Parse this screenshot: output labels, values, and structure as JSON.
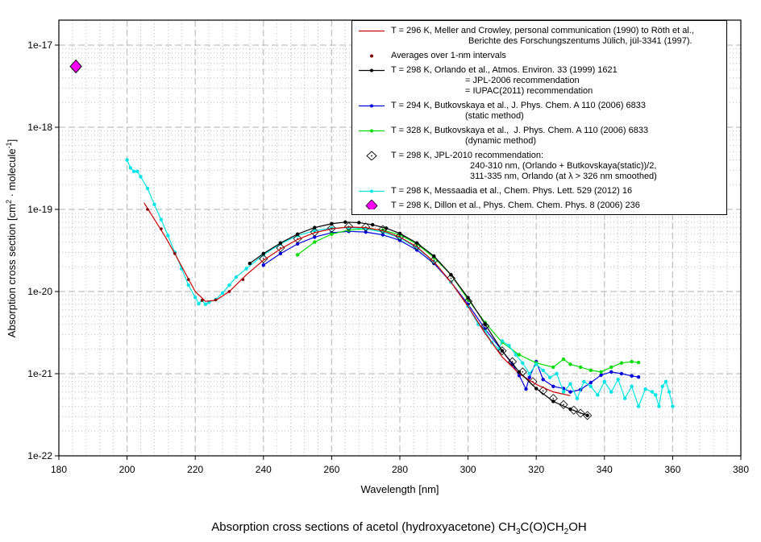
{
  "chart_data": {
    "type": "line",
    "title": "Absorption cross sections of acetol (hydroxyacetone) CH3C(O)CH2OH",
    "title_parts": [
      "Absorption cross sections of acetol (hydroxyacetone) CH",
      "3",
      "C(O)CH",
      "2",
      "OH"
    ],
    "xlabel": "Wavelength [nm]",
    "ylabel": "Absorption cross section [cm2 · molecule-1]",
    "ylabel_parts": [
      "Absorption cross section [cm",
      "2",
      " · molecule",
      "-1",
      "]"
    ],
    "xlim": [
      180,
      380
    ],
    "ylim": [
      1e-22,
      3e-17
    ],
    "yscale": "log",
    "grid": true,
    "legend_position": "top-right",
    "x_ticks": [
      180,
      200,
      220,
      240,
      260,
      280,
      300,
      320,
      340,
      360,
      380
    ],
    "y_ticks": [
      {
        "value": 1e-22,
        "label": "1e-22"
      },
      {
        "value": 1e-21,
        "label": "1e-21"
      },
      {
        "value": 1e-20,
        "label": "1e-20"
      },
      {
        "value": 1e-19,
        "label": "1e-19"
      },
      {
        "value": 1e-18,
        "label": "1e-18"
      },
      {
        "value": 1e-17,
        "label": "1e-17"
      }
    ],
    "series": [
      {
        "name": "T = 296 K, Meller and Crowley, personal communication (1990) to Röth et al., Berichte des Forschungszentums Jülich, jül-3341 (1997).",
        "color": "#cc0000",
        "marker": "none",
        "x": [
          205,
          208,
          211,
          214,
          217,
          220,
          223,
          226,
          230,
          235,
          240,
          245,
          250,
          255,
          260,
          265,
          270,
          275,
          280,
          285,
          290,
          295,
          300,
          305,
          310,
          315,
          320,
          325,
          330
        ],
        "y": [
          1.2e-19,
          7.6e-20,
          4.8e-20,
          2.9e-20,
          1.7e-20,
          1e-20,
          7.6e-21,
          7.8e-21,
          1e-20,
          1.6e-20,
          2.4e-20,
          3.3e-20,
          4.3e-20,
          5.2e-20,
          5.8e-20,
          6.1e-20,
          6e-20,
          5.5e-20,
          4.6e-20,
          3.5e-20,
          2.3e-20,
          1.3e-20,
          6.6e-21,
          3.1e-21,
          1.6e-21,
          1e-21,
          7.4e-22,
          6e-22,
          5.4e-22
        ]
      },
      {
        "name": "Averages over 1-nm intervals",
        "color": "#800000",
        "marker": "dot",
        "x": [
          206,
          210,
          214,
          218,
          222,
          226,
          230,
          234
        ],
        "y": [
          1e-19,
          5.8e-20,
          2.9e-20,
          1.4e-20,
          7.8e-21,
          7.9e-21,
          1e-20,
          1.4e-20
        ]
      },
      {
        "name": "T = 298 K, Orlando et al., Atmos. Environ. 33 (1999) 1621 = JPL-2006 recommendation = IUPAC(2011) recommendation",
        "color": "#000000",
        "marker": "dot",
        "x": [
          236,
          240,
          245,
          250,
          255,
          260,
          264,
          268,
          272,
          276,
          280,
          285,
          290,
          295,
          300,
          305,
          310,
          315,
          320,
          325,
          330,
          335
        ],
        "y": [
          2.2e-20,
          2.9e-20,
          3.9e-20,
          5e-20,
          6e-20,
          6.7e-20,
          7e-20,
          6.9e-20,
          6.5e-20,
          5.9e-20,
          5.1e-20,
          3.9e-20,
          2.7e-20,
          1.6e-20,
          8.4e-21,
          4e-21,
          1.9e-21,
          1.05e-21,
          6.6e-22,
          4.6e-22,
          3.7e-22,
          3.1e-22
        ]
      },
      {
        "name": "T = 294 K, Butkovskaya et al., J. Phys. Chem. A 110 (2006) 6833 (static method)",
        "color": "#0000dd",
        "marker": "dot",
        "x": [
          240,
          245,
          250,
          255,
          260,
          265,
          270,
          275,
          280,
          285,
          290,
          295,
          300,
          305,
          310,
          313,
          315,
          317,
          318,
          320,
          322,
          325,
          328,
          330,
          333,
          336,
          339,
          342,
          345,
          348,
          350
        ],
        "y": [
          2.1e-20,
          2.9e-20,
          3.8e-20,
          4.6e-20,
          5.2e-20,
          5.4e-20,
          5.3e-20,
          4.9e-20,
          4.2e-20,
          3.2e-20,
          2.2e-20,
          1.3e-20,
          7e-21,
          3.5e-21,
          1.9e-21,
          1.3e-21,
          9.5e-22,
          6.5e-22,
          9e-22,
          1.4e-21,
          8.5e-22,
          7e-22,
          6.6e-22,
          6e-22,
          6.4e-22,
          7.8e-22,
          9.6e-22,
          1.05e-21,
          1e-21,
          9.4e-22,
          9.1e-22
        ]
      },
      {
        "name": "T = 328 K, Butkovskaya et al., J. Phys. Chem. A 110 (2006) 6833 (dynamic method)",
        "color": "#00dd00",
        "marker": "dot",
        "x": [
          250,
          255,
          260,
          265,
          270,
          275,
          280,
          285,
          290,
          295,
          300,
          305,
          310,
          315,
          320,
          325,
          328,
          330,
          333,
          336,
          339,
          342,
          345,
          348,
          350
        ],
        "y": [
          2.8e-20,
          4e-20,
          5e-20,
          5.6e-20,
          5.8e-20,
          5.6e-20,
          4.9e-20,
          3.8e-20,
          2.6e-20,
          1.6e-20,
          8e-21,
          4.2e-21,
          2.4e-21,
          1.7e-21,
          1.35e-21,
          1.2e-21,
          1.5e-21,
          1.3e-21,
          1.2e-21,
          1.1e-21,
          1.05e-21,
          1.2e-21,
          1.35e-21,
          1.4e-21,
          1.37e-21
        ]
      },
      {
        "name": "T = 298 K, JPL-2010 recommendation: 240-310 nm, (Orlando + Butkovskaya(static))/2, 311-335 nm, Orlando (at λ > 326 nm smoothed)",
        "color": "#000000",
        "marker": "open-diamond",
        "x": [
          240,
          245,
          250,
          255,
          260,
          265,
          270,
          275,
          280,
          285,
          290,
          295,
          300,
          305,
          310,
          313,
          316,
          319,
          322,
          325,
          328,
          331,
          333,
          335
        ],
        "y": [
          2.5e-20,
          3.4e-20,
          4.4e-20,
          5.3e-20,
          5.9e-20,
          6.2e-20,
          6.1e-20,
          5.7e-20,
          4.7e-20,
          3.6e-20,
          2.4e-20,
          1.45e-20,
          7.6e-21,
          3.8e-21,
          1.9e-21,
          1.4e-21,
          1.05e-21,
          8e-22,
          6.2e-22,
          5e-22,
          4.2e-22,
          3.6e-22,
          3.3e-22,
          3.1e-22
        ]
      },
      {
        "name": "T = 298 K, Messaadia et al., Chem. Phys. Lett. 529 (2012) 16",
        "color": "#00e5e5",
        "marker": "dot",
        "x": [
          200,
          201,
          202,
          203,
          204,
          206,
          208,
          210,
          212,
          214,
          216,
          218,
          220,
          221,
          222,
          223,
          224,
          226,
          228,
          230,
          232,
          235,
          240,
          245,
          250,
          255,
          260,
          265,
          270,
          275,
          280,
          285,
          290,
          295,
          300,
          303,
          305,
          307,
          309,
          310,
          312,
          314,
          316,
          318,
          320,
          322,
          324,
          326,
          328,
          330,
          332,
          334,
          336,
          338,
          340,
          342,
          344,
          346,
          348,
          350,
          352,
          354,
          355,
          356,
          357,
          358,
          359,
          360
        ],
        "y": [
          4e-19,
          3.2e-19,
          2.9e-19,
          2.9e-19,
          2.5e-19,
          1.8e-19,
          1.15e-19,
          7.5e-20,
          4.8e-20,
          3e-20,
          1.9e-20,
          1.2e-20,
          8.5e-21,
          7.1e-21,
          7.8e-21,
          7e-21,
          7.4e-21,
          8e-21,
          9.6e-21,
          1.2e-20,
          1.5e-20,
          1.9e-20,
          2.8e-20,
          3.8e-20,
          4.8e-20,
          5.5e-20,
          5.9e-20,
          6e-20,
          5.8e-20,
          5.3e-20,
          4.5e-20,
          3.4e-20,
          2.3e-20,
          1.3e-20,
          6.6e-21,
          4e-21,
          3.3e-21,
          2.4e-21,
          2e-21,
          2.5e-21,
          2.2e-21,
          1.7e-21,
          1.35e-21,
          1e-21,
          1.3e-21,
          1.1e-21,
          9e-22,
          1e-21,
          6e-22,
          7.5e-22,
          5e-22,
          8e-22,
          7e-22,
          5.5e-22,
          8e-22,
          6e-22,
          8.5e-22,
          5e-22,
          7e-22,
          4e-22,
          6.5e-22,
          6e-22,
          5.5e-22,
          4e-22,
          7e-22,
          8e-22,
          6e-22,
          4e-22
        ]
      },
      {
        "name": "T = 298 K, Dillon et al., Phys. Chem. Chem. Phys. 8 (2006) 236",
        "color": "#ff00ff",
        "marker": "filled-diamond",
        "x": [
          185
        ],
        "y": [
          5.5e-18
        ]
      }
    ]
  },
  "legend": [
    {
      "symbol": "line",
      "color": "#cc0000",
      "lines": [
        "T = 296 K, Meller and Crowley, personal communication (1990) to Röth et al.,",
        "Berichte des Forschungszentums Jülich, jül-3341 (1997)."
      ]
    },
    {
      "symbol": "dot",
      "color": "#800000",
      "lines": [
        "Averages over 1-nm intervals"
      ]
    },
    {
      "symbol": "line-dot",
      "color": "#000000",
      "lines": [
        "T = 298 K, Orlando et al., Atmos. Environ. 33 (1999) 1621",
        "= JPL-2006 recommendation",
        "= IUPAC(2011) recommendation"
      ]
    },
    {
      "symbol": "line-dot",
      "color": "#0000dd",
      "lines": [
        "T = 294 K, Butkovskaya et al., J. Phys. Chem. A 110 (2006) 6833",
        "(static method)"
      ]
    },
    {
      "symbol": "line-dot",
      "color": "#00dd00",
      "lines": [
        "T = 328 K, Butkovskaya et al.,  J. Phys. Chem. A 110 (2006) 6833",
        "(dynamic method)"
      ]
    },
    {
      "symbol": "open-diamond",
      "color": "#000000",
      "lines": [
        "T = 298 K, JPL-2010 recommendation:",
        "240-310 nm, (Orlando + Butkovskaya(static))/2,",
        "311-335 nm, Orlando (at λ > 326 nm smoothed)"
      ]
    },
    {
      "symbol": "line-dot",
      "color": "#00e5e5",
      "lines": [
        "T = 298 K, Messaadia et al., Chem. Phys. Lett. 529 (2012) 16"
      ]
    },
    {
      "symbol": "filled-diamond",
      "color": "#ff00ff",
      "lines": [
        "T = 298 K, Dillon et al., Phys. Chem. Chem. Phys. 8 (2006) 236"
      ]
    }
  ]
}
